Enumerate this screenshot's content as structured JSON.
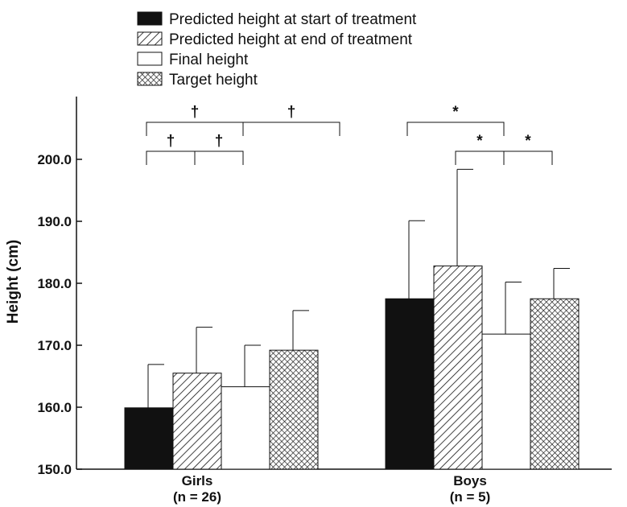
{
  "chart_data": {
    "type": "bar",
    "categories": [
      "Girls",
      "Boys"
    ],
    "category_sublabels": [
      "(n = 26)",
      "(n = 5)"
    ],
    "ylabel": "Height (cm)",
    "ylim": [
      150,
      210
    ],
    "yticks": [
      150,
      160,
      170,
      180,
      190,
      200
    ],
    "ytick_labels": [
      "150.0",
      "160.0",
      "170.0",
      "180.0",
      "190.0",
      "200.0"
    ],
    "legend_position": "top",
    "series": [
      {
        "name": "Predicted height at start of treatment",
        "pattern": "solid",
        "values": [
          159.9,
          177.5
        ],
        "errors": [
          7.0,
          12.6
        ]
      },
      {
        "name": "Predicted height at end of treatment",
        "pattern": "diagonal-hatch",
        "values": [
          165.5,
          182.8
        ],
        "errors": [
          7.4,
          15.6
        ]
      },
      {
        "name": "Final height",
        "pattern": "empty",
        "values": [
          163.3,
          171.8
        ],
        "errors": [
          6.7,
          8.4
        ]
      },
      {
        "name": "Target height",
        "pattern": "crosshatch",
        "values": [
          169.2,
          177.5
        ],
        "errors": [
          6.4,
          4.9
        ]
      }
    ],
    "significance": [
      {
        "category": 0,
        "from": 0,
        "to": 2,
        "symbol": "†",
        "level": 2
      },
      {
        "category": 0,
        "from": 2,
        "to": 4,
        "symbol": "†",
        "level": 2
      },
      {
        "category": 0,
        "from": 0,
        "to": 1,
        "symbol": "†",
        "level": 1
      },
      {
        "category": 0,
        "from": 1,
        "to": 2,
        "symbol": "†",
        "level": 1
      },
      {
        "category": 1,
        "from": 0,
        "to": 2,
        "symbol": "*",
        "level": 2
      },
      {
        "category": 1,
        "from": 1,
        "to": 2,
        "symbol": "*",
        "level": 1
      },
      {
        "category": 1,
        "from": 2,
        "to": 3,
        "symbol": "*",
        "level": 1
      }
    ],
    "colors": {
      "ink": "#111111",
      "background": "#ffffff"
    }
  }
}
